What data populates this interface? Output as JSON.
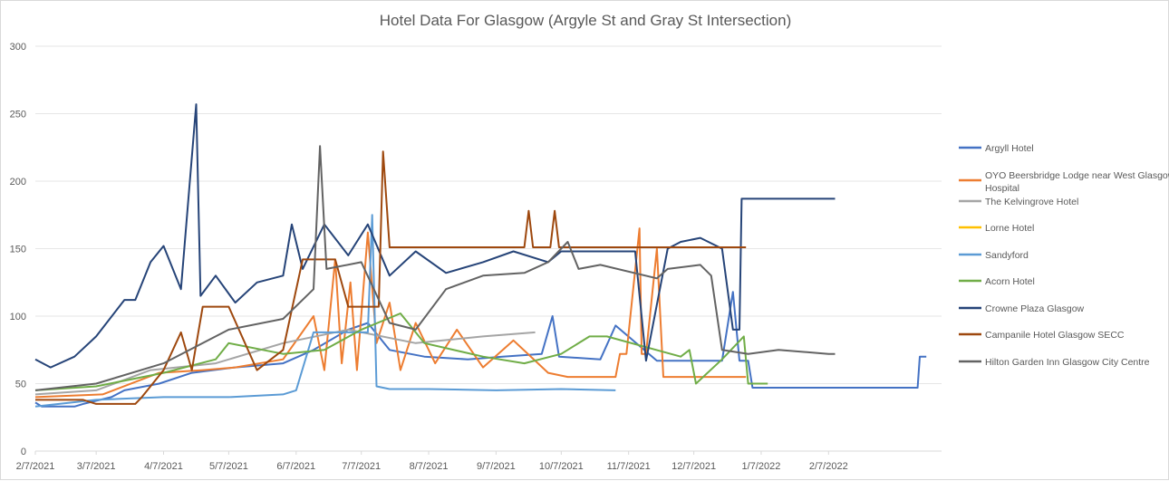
{
  "chart_data": {
    "type": "line",
    "title": "Hotel Data  For Glasgow (Argyle St and Gray St Intersection)",
    "xlabel": "",
    "ylabel": "",
    "ylim": [
      0,
      300
    ],
    "yticks": [
      "0",
      "50",
      "100",
      "150",
      "200",
      "250",
      "300"
    ],
    "xlim": [
      "2/7/2021",
      "3/31/2022"
    ],
    "xticks": [
      "2/7/2021",
      "3/7/2021",
      "4/7/2021",
      "5/7/2021",
      "6/7/2021",
      "7/7/2021",
      "8/7/2021",
      "9/7/2021",
      "10/7/2021",
      "11/7/2021",
      "12/7/2021",
      "1/7/2022",
      "2/7/2022"
    ],
    "legend_position": "right",
    "grid": "horizontal",
    "series": [
      {
        "name": "Argyll Hotel",
        "color": "#4472C4",
        "points": [
          [
            "2/7/2021",
            36
          ],
          [
            "2/10/2021",
            33
          ],
          [
            "2/25/2021",
            33
          ],
          [
            "3/1/2021",
            35
          ],
          [
            "3/14/2021",
            40
          ],
          [
            "3/20/2021",
            45
          ],
          [
            "4/5/2021",
            50
          ],
          [
            "4/20/2021",
            58
          ],
          [
            "5/10/2021",
            62
          ],
          [
            "6/1/2021",
            65
          ],
          [
            "6/15/2021",
            75
          ],
          [
            "7/1/2021",
            90
          ],
          [
            "7/10/2021",
            95
          ],
          [
            "7/20/2021",
            75
          ],
          [
            "8/5/2021",
            70
          ],
          [
            "8/25/2021",
            68
          ],
          [
            "9/10/2021",
            70
          ],
          [
            "9/28/2021",
            72
          ],
          [
            "10/3/2021",
            100
          ],
          [
            "10/6/2021",
            70
          ],
          [
            "10/25/2021",
            68
          ],
          [
            "11/1/2021",
            93
          ],
          [
            "11/20/2021",
            67
          ],
          [
            "12/20/2021",
            67
          ],
          [
            "12/25/2021",
            118
          ],
          [
            "12/28/2021",
            67
          ],
          [
            "1/1/2022",
            67
          ],
          [
            "1/3/2022",
            47
          ],
          [
            "3/20/2022",
            47
          ],
          [
            "3/21/2022",
            70
          ],
          [
            "3/24/2022",
            70
          ]
        ]
      },
      {
        "name": "OYO Beersbridge Lodge near West Glasgow Hospital",
        "color": "#ED7D31",
        "points": [
          [
            "2/7/2021",
            40
          ],
          [
            "3/10/2021",
            42
          ],
          [
            "4/5/2021",
            58
          ],
          [
            "4/25/2021",
            60
          ],
          [
            "5/10/2021",
            62
          ],
          [
            "6/1/2021",
            68
          ],
          [
            "6/15/2021",
            100
          ],
          [
            "6/20/2021",
            60
          ],
          [
            "6/25/2021",
            142
          ],
          [
            "6/28/2021",
            65
          ],
          [
            "7/2/2021",
            125
          ],
          [
            "7/5/2021",
            60
          ],
          [
            "7/10/2021",
            162
          ],
          [
            "7/14/2021",
            80
          ],
          [
            "7/20/2021",
            110
          ],
          [
            "7/25/2021",
            60
          ],
          [
            "8/1/2021",
            95
          ],
          [
            "8/10/2021",
            65
          ],
          [
            "8/20/2021",
            90
          ],
          [
            "9/1/2021",
            62
          ],
          [
            "9/15/2021",
            82
          ],
          [
            "10/1/2021",
            58
          ],
          [
            "10/10/2021",
            55
          ],
          [
            "11/1/2021",
            55
          ],
          [
            "11/3/2021",
            72
          ],
          [
            "11/6/2021",
            72
          ],
          [
            "11/12/2021",
            165
          ],
          [
            "11/13/2021",
            72
          ],
          [
            "11/15/2021",
            72
          ],
          [
            "11/20/2021",
            150
          ],
          [
            "11/23/2021",
            55
          ],
          [
            "12/31/2021",
            55
          ]
        ]
      },
      {
        "name": "The Kelvingrove Hotel",
        "color": "#A5A5A5",
        "points": [
          [
            "2/7/2021",
            42
          ],
          [
            "3/7/2021",
            45
          ],
          [
            "4/1/2021",
            60
          ],
          [
            "5/1/2021",
            65
          ],
          [
            "6/1/2021",
            80
          ],
          [
            "7/1/2021",
            90
          ],
          [
            "8/1/2021",
            80
          ],
          [
            "9/1/2021",
            85
          ],
          [
            "9/25/2021",
            88
          ]
        ]
      },
      {
        "name": "Lorne Hotel",
        "color": "#FFC000",
        "points": []
      },
      {
        "name": "Sandyford",
        "color": "#5B9BD5",
        "points": [
          [
            "2/7/2021",
            33
          ],
          [
            "3/7/2021",
            38
          ],
          [
            "4/7/2021",
            40
          ],
          [
            "5/7/2021",
            40
          ],
          [
            "6/1/2021",
            42
          ],
          [
            "6/7/2021",
            45
          ],
          [
            "6/15/2021",
            88
          ],
          [
            "7/10/2021",
            88
          ],
          [
            "7/12/2021",
            175
          ],
          [
            "7/14/2021",
            48
          ],
          [
            "7/20/2021",
            46
          ],
          [
            "8/7/2021",
            46
          ],
          [
            "9/7/2021",
            45
          ],
          [
            "10/7/2021",
            46
          ],
          [
            "11/1/2021",
            45
          ]
        ]
      },
      {
        "name": "Acorn Hotel",
        "color": "#70AD47",
        "points": [
          [
            "2/7/2021",
            45
          ],
          [
            "3/7/2021",
            48
          ],
          [
            "4/7/2021",
            58
          ],
          [
            "5/1/2021",
            68
          ],
          [
            "5/7/2021",
            80
          ],
          [
            "6/1/2021",
            72
          ],
          [
            "6/20/2021",
            75
          ],
          [
            "7/7/2021",
            90
          ],
          [
            "7/25/2021",
            102
          ],
          [
            "8/5/2021",
            80
          ],
          [
            "9/1/2021",
            70
          ],
          [
            "9/20/2021",
            65
          ],
          [
            "10/7/2021",
            72
          ],
          [
            "10/20/2021",
            85
          ],
          [
            "10/28/2021",
            85
          ],
          [
            "12/1/2021",
            70
          ],
          [
            "12/5/2021",
            75
          ],
          [
            "12/8/2021",
            50
          ],
          [
            "12/20/2021",
            68
          ],
          [
            "12/30/2021",
            85
          ],
          [
            "1/1/2022",
            50
          ],
          [
            "1/10/2022",
            50
          ]
        ]
      },
      {
        "name": "Crowne Plaza Glasgow",
        "color": "#264478",
        "points": [
          [
            "2/7/2021",
            68
          ],
          [
            "2/14/2021",
            62
          ],
          [
            "2/25/2021",
            70
          ],
          [
            "3/7/2021",
            85
          ],
          [
            "3/20/2021",
            112
          ],
          [
            "3/25/2021",
            112
          ],
          [
            "4/1/2021",
            140
          ],
          [
            "4/7/2021",
            152
          ],
          [
            "4/15/2021",
            120
          ],
          [
            "4/22/2021",
            257
          ],
          [
            "4/24/2021",
            115
          ],
          [
            "5/1/2021",
            130
          ],
          [
            "5/10/2021",
            110
          ],
          [
            "5/20/2021",
            125
          ],
          [
            "6/1/2021",
            130
          ],
          [
            "6/5/2021",
            168
          ],
          [
            "6/10/2021",
            135
          ],
          [
            "6/20/2021",
            168
          ],
          [
            "7/1/2021",
            145
          ],
          [
            "7/10/2021",
            168
          ],
          [
            "7/20/2021",
            130
          ],
          [
            "8/1/2021",
            148
          ],
          [
            "8/15/2021",
            132
          ],
          [
            "9/1/2021",
            140
          ],
          [
            "9/15/2021",
            148
          ],
          [
            "10/1/2021",
            140
          ],
          [
            "10/7/2021",
            148
          ],
          [
            "10/20/2021",
            148
          ],
          [
            "11/10/2021",
            148
          ],
          [
            "11/15/2021",
            67
          ],
          [
            "11/25/2021",
            150
          ],
          [
            "12/1/2021",
            155
          ],
          [
            "12/10/2021",
            158
          ],
          [
            "12/20/2021",
            150
          ],
          [
            "12/25/2021",
            90
          ],
          [
            "12/28/2021",
            90
          ],
          [
            "12/29/2021",
            187
          ],
          [
            "2/10/2022",
            187
          ]
        ]
      },
      {
        "name": "Campanile Hotel Glasgow SECC",
        "color": "#9E480E",
        "points": [
          [
            "2/7/2021",
            38
          ],
          [
            "3/1/2021",
            38
          ],
          [
            "3/7/2021",
            35
          ],
          [
            "3/25/2021",
            35
          ],
          [
            "3/28/2021",
            40
          ],
          [
            "4/7/2021",
            60
          ],
          [
            "4/15/2021",
            88
          ],
          [
            "4/20/2021",
            60
          ],
          [
            "4/25/2021",
            107
          ],
          [
            "5/7/2021",
            107
          ],
          [
            "5/20/2021",
            60
          ],
          [
            "6/1/2021",
            75
          ],
          [
            "6/10/2021",
            142
          ],
          [
            "6/25/2021",
            142
          ],
          [
            "7/1/2021",
            107
          ],
          [
            "7/15/2021",
            107
          ],
          [
            "7/17/2021",
            222
          ],
          [
            "7/20/2021",
            151
          ],
          [
            "9/20/2021",
            151
          ],
          [
            "9/22/2021",
            178
          ],
          [
            "9/24/2021",
            151
          ],
          [
            "10/2/2021",
            151
          ],
          [
            "10/4/2021",
            178
          ],
          [
            "10/6/2021",
            151
          ],
          [
            "10/28/2021",
            151
          ],
          [
            "11/15/2021",
            151
          ],
          [
            "12/31/2021",
            151
          ]
        ]
      },
      {
        "name": "Hilton Garden Inn Glasgow City Centre",
        "color": "#636363",
        "points": [
          [
            "2/7/2021",
            45
          ],
          [
            "3/7/2021",
            50
          ],
          [
            "4/7/2021",
            65
          ],
          [
            "5/7/2021",
            90
          ],
          [
            "6/1/2021",
            98
          ],
          [
            "6/15/2021",
            120
          ],
          [
            "6/18/2021",
            226
          ],
          [
            "6/21/2021",
            135
          ],
          [
            "7/7/2021",
            140
          ],
          [
            "7/20/2021",
            95
          ],
          [
            "8/1/2021",
            90
          ],
          [
            "8/15/2021",
            120
          ],
          [
            "9/1/2021",
            130
          ],
          [
            "9/20/2021",
            132
          ],
          [
            "10/1/2021",
            140
          ],
          [
            "10/10/2021",
            155
          ],
          [
            "10/15/2021",
            135
          ],
          [
            "10/25/2021",
            138
          ],
          [
            "11/20/2021",
            128
          ],
          [
            "11/25/2021",
            135
          ],
          [
            "12/10/2021",
            138
          ],
          [
            "12/15/2021",
            130
          ],
          [
            "12/20/2021",
            75
          ],
          [
            "1/1/2022",
            72
          ],
          [
            "1/15/2022",
            75
          ],
          [
            "2/7/2022",
            72
          ],
          [
            "2/10/2022",
            72
          ]
        ]
      }
    ]
  }
}
